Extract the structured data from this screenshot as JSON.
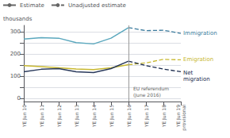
{
  "chart_data": {
    "type": "line",
    "ylabel": "thousands",
    "categories": [
      "YE Jun 10",
      "YE Jun 11",
      "YE Jun 12",
      "YE Jun 13",
      "YE Jun 14",
      "YE Jun 15",
      "YE Jun 16",
      "YE Jun 17",
      "YE Jun 18",
      "YE Jun 19"
    ],
    "category_sublabels": [
      null,
      null,
      null,
      null,
      null,
      null,
      null,
      null,
      null,
      "provisional"
    ],
    "unadjusted_from": "YE Jun 16",
    "series": [
      {
        "name": "Immigration",
        "color": "#5ba8be",
        "unadjusted_color": "#3a7a9c",
        "values": [
          268,
          274,
          272,
          252,
          246,
          272,
          320,
          306,
          308,
          294
        ]
      },
      {
        "name": "Emigration",
        "color": "#c8b830",
        "unadjusted_color": "#c8b830",
        "values": [
          148,
          143,
          138,
          132,
          130,
          138,
          152,
          160,
          176,
          174
        ]
      },
      {
        "name": "Net\nmigration",
        "color": "#2a3a5c",
        "unadjusted_color": "#1a2a4c",
        "values": [
          120,
          131,
          134,
          120,
          116,
          134,
          168,
          148,
          132,
          120
        ]
      }
    ],
    "line_styles": [
      {
        "label": "Estimate",
        "line_style": "solid"
      },
      {
        "label": "Unadjusted estimate",
        "line_style": "dashed"
      }
    ],
    "legend": "top-left",
    "vline": {
      "x": "YE Jun 16",
      "label": "EU referendum\n(June 2016)",
      "color": "#999999"
    },
    "ylim": [
      -15,
      330
    ],
    "yticks": [
      0,
      {
        "value": 50,
        "label": ""
      },
      100,
      {
        "value": 150,
        "label": ""
      },
      200,
      {
        "value": 250,
        "label": ""
      },
      300
    ],
    "grid": true
  }
}
